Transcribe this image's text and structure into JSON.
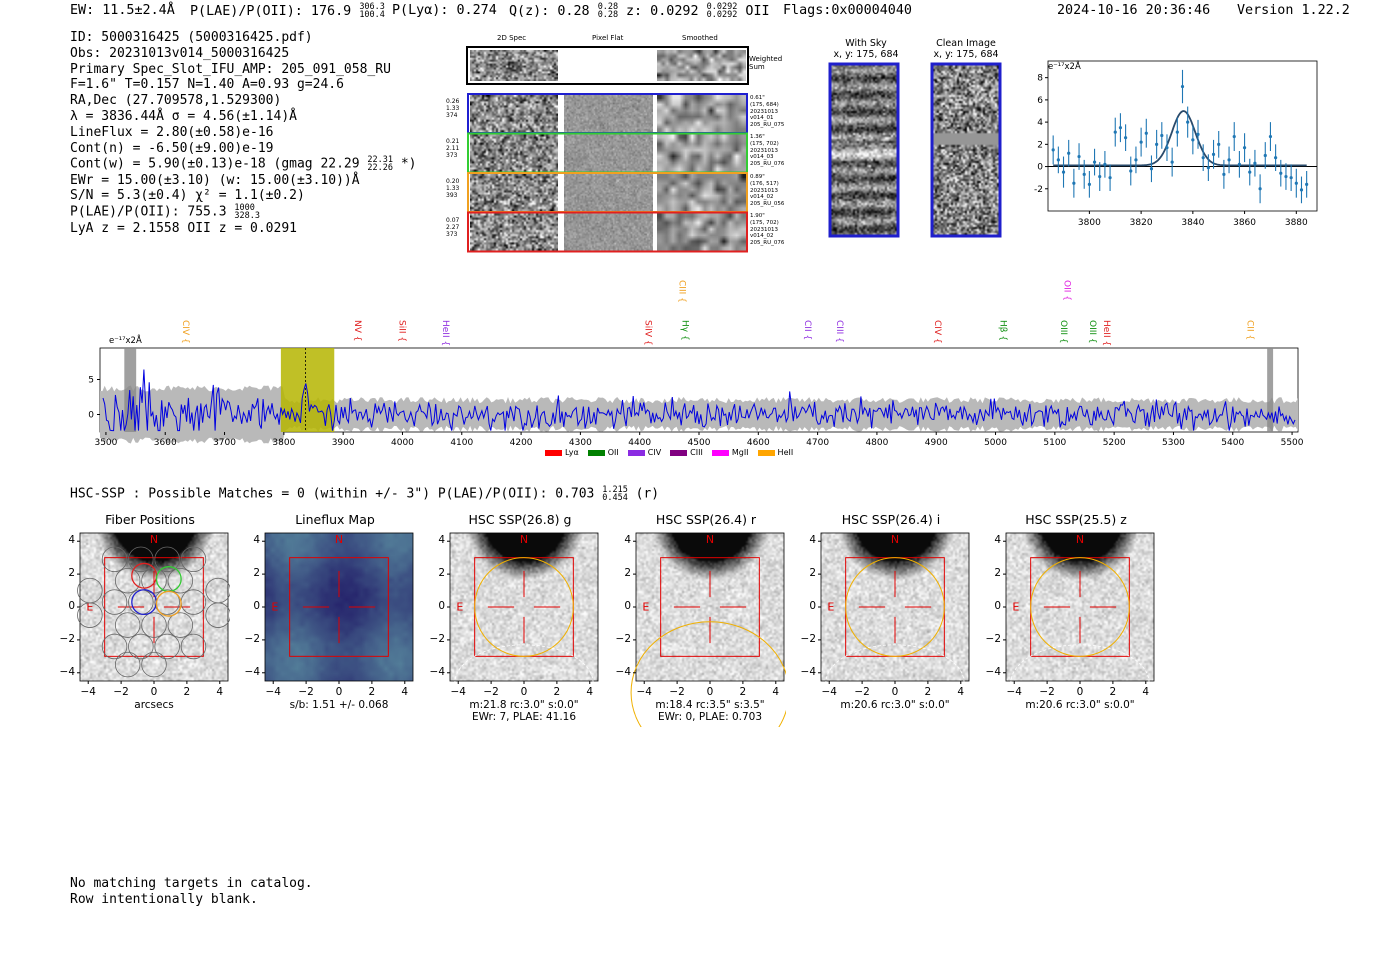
{
  "header": {
    "ew": "EW: 11.5±2.4Å",
    "plae_label": "P(LAE)/P(OII): 176.9",
    "plae_hi": "306.3",
    "plae_lo": "100.4",
    "plya": "P(Lyα): 0.274",
    "qz_label": "Q(z): 0.28",
    "qz_hi": "0.28",
    "qz_lo": "0.28",
    "z_label": "z: 0.0292",
    "z_hi": "0.0292",
    "z_lo": "0.0292",
    "z_line": "OII",
    "flags": "Flags:0x00004040",
    "timestamp": "2024-10-16 20:36:46",
    "version": "Version 1.22.2"
  },
  "info": {
    "id": "ID: 5000316425 (5000316425.pdf)",
    "obs": "Obs: 20231013v014_5000316425",
    "primary": "Primary Spec_Slot_IFU_AMP: 205_091_058_RU",
    "fiber": "F=1.6\"  T=0.157  N=1.40  A=0.93  g=24.6",
    "radec": "RA,Dec (27.709578,1.529300)",
    "lambda": "λ = 3836.44Å   σ = 4.56(±1.14)Å",
    "lineflux": "LineFlux = 2.80(±0.58)e-16",
    "contn": "Cont(n) = -6.50(±9.00)e-19",
    "contw_a": "Cont(w) = 5.90(±0.13)e-18 (gmag 22.29",
    "contw_hi": "22.31",
    "contw_lo": "22.26",
    "contw_b": "*)",
    "ewr": "EWr = 15.00(±3.10) (w: 15.00(±3.10))Å",
    "sn": "S/N = 5.3(±0.4)  χ² = 1.1(±0.2)",
    "plae_a": "P(LAE)/P(OII): 755.3",
    "plae_hi": "1000",
    "plae_lo": "328.3",
    "lyaz": "LyA z = 2.1558  OII z = 0.0291"
  },
  "cutouts": {
    "col_titles": [
      "2D Spec",
      "Pixel Flat",
      "Smoothed"
    ],
    "weighted_sum": "Weighted Sum",
    "rows": [
      {
        "left": [
          "0.26",
          "1.33",
          "374"
        ],
        "right": [
          "0.61\"",
          "(175, 684)",
          "20231013",
          "v014_01",
          "205_RU_075"
        ],
        "color": "#1f1fd0"
      },
      {
        "left": [
          "0.21",
          "2.11",
          "373"
        ],
        "right": [
          "1.36\"",
          "(175, 702)",
          "20231013",
          "v014_03",
          "205_RU_076"
        ],
        "color": "#33cc33"
      },
      {
        "left": [
          "0.20",
          "1.33",
          "393"
        ],
        "right": [
          "0.89\"",
          "(176, 517)",
          "20231013",
          "v014_02",
          "205_RU_056"
        ],
        "color": "#f0a020"
      },
      {
        "left": [
          "0.07",
          "2.27",
          "373"
        ],
        "right": [
          "1.90\"",
          "(175, 702)",
          "20231013",
          "v014_02",
          "205_RU_076"
        ],
        "color": "#e02020"
      }
    ]
  },
  "sky": {
    "with_sky_title": "With Sky",
    "with_sky_xy": "x, y: 175, 684",
    "clean_title": "Clean Image",
    "clean_xy": "x, y: 175, 684"
  },
  "zoom_unit": "e⁻¹⁷x2Å",
  "full_unit": "e⁻¹⁷x2Å",
  "chart_data": [
    {
      "type": "scatter",
      "name": "zoom_spectrum",
      "xlim": [
        3784,
        3888
      ],
      "ylim": [
        -4,
        9.5
      ],
      "xticks": [
        3800,
        3820,
        3840,
        3860,
        3880
      ],
      "yticks": [
        -2,
        0,
        2,
        4,
        6,
        8
      ],
      "x": [
        3786,
        3788,
        3790,
        3792,
        3794,
        3796,
        3798,
        3800,
        3802,
        3804,
        3806,
        3808,
        3810,
        3812,
        3814,
        3816,
        3818,
        3820,
        3822,
        3824,
        3826,
        3828,
        3830,
        3832,
        3834,
        3836,
        3838,
        3840,
        3842,
        3844,
        3846,
        3848,
        3850,
        3852,
        3854,
        3856,
        3858,
        3860,
        3862,
        3864,
        3866,
        3868,
        3870,
        3872,
        3874,
        3876,
        3878,
        3880,
        3882,
        3884
      ],
      "y": [
        1.5,
        0.6,
        -0.5,
        1.2,
        -1.5,
        0.9,
        -0.7,
        -1.6,
        0.4,
        -0.9,
        0.2,
        -1.0,
        3.1,
        3.5,
        2.6,
        -0.4,
        0.6,
        2.2,
        3.0,
        -0.2,
        2.0,
        2.8,
        1.7,
        0.4,
        3.1,
        7.2,
        4.0,
        2.4,
        2.9,
        0.8,
        -0.1,
        1.1,
        2.0,
        -0.7,
        0.6,
        2.7,
        0.2,
        1.7,
        -0.5,
        0.3,
        -2.0,
        1.0,
        2.7,
        0.8,
        -0.6,
        -0.9,
        -1.0,
        -1.5,
        -2.1,
        -1.6
      ],
      "err": [
        1.3,
        1.2,
        1.4,
        1.2,
        1.3,
        1.2,
        1.3,
        1.2,
        1.2,
        1.3,
        1.2,
        1.2,
        1.3,
        1.3,
        1.2,
        1.3,
        1.2,
        1.3,
        1.3,
        1.2,
        1.3,
        1.2,
        1.2,
        1.3,
        1.3,
        1.5,
        1.4,
        1.3,
        1.3,
        1.2,
        1.2,
        1.3,
        1.2,
        1.3,
        1.2,
        1.3,
        1.2,
        1.3,
        1.2,
        1.2,
        1.3,
        1.2,
        1.3,
        1.2,
        1.2,
        1.2,
        1.2,
        1.3,
        1.2,
        1.2
      ],
      "fit": {
        "amp": 4.9,
        "center": 3836.4,
        "sigma": 4.56,
        "baseline": 0.1
      }
    },
    {
      "type": "line",
      "name": "full_spectrum",
      "xlim": [
        3490,
        5510
      ],
      "ylim": [
        -2.5,
        9.5
      ],
      "xticks": [
        3500,
        3600,
        3700,
        3800,
        3900,
        4000,
        4100,
        4200,
        4300,
        4400,
        4500,
        4600,
        4700,
        4800,
        4900,
        5000,
        5100,
        5200,
        5300,
        5400,
        5500
      ],
      "yticks": [
        0,
        5
      ],
      "highlight_range": [
        3795,
        3885
      ],
      "line_marker": 3836.4,
      "lines": [
        {
          "label": "CIV",
          "x": 3625,
          "color": "#f0a020",
          "high": false
        },
        {
          "label": "NV",
          "x": 3915,
          "color": "#e02020",
          "high": false
        },
        {
          "label": "SiII",
          "x": 3990,
          "color": "#e02020",
          "high": false
        },
        {
          "label": "HeII",
          "x": 4063,
          "color": "#9030e0",
          "high": false
        },
        {
          "label": "SiIV",
          "x": 4405,
          "color": "#e02020",
          "high": false
        },
        {
          "label": "CIII",
          "x": 4462,
          "color": "#f0a020",
          "high": true
        },
        {
          "label": "Hγ",
          "x": 4467,
          "color": "#109010",
          "high": false
        },
        {
          "label": "CII",
          "x": 4674,
          "color": "#9030e0",
          "high": false
        },
        {
          "label": "CIII",
          "x": 4728,
          "color": "#9030e0",
          "high": false
        },
        {
          "label": "CIV",
          "x": 4893,
          "color": "#e02020",
          "high": false
        },
        {
          "label": "Hβ",
          "x": 5003,
          "color": "#109010",
          "high": false
        },
        {
          "label": "OIII",
          "x": 5105,
          "color": "#109010",
          "high": false
        },
        {
          "label": "OII",
          "x": 5111,
          "color": "#e020e0",
          "high": true
        },
        {
          "label": "OIII",
          "x": 5154,
          "color": "#109010",
          "high": false
        },
        {
          "label": "HeII",
          "x": 5178,
          "color": "#e02020",
          "high": false
        },
        {
          "label": "CII",
          "x": 5420,
          "color": "#f0a020",
          "high": false
        }
      ]
    }
  ],
  "legend": [
    {
      "label": "Lyα",
      "color": "#ff0000"
    },
    {
      "label": "OII",
      "color": "#008000"
    },
    {
      "label": "CIV",
      "color": "#8a2be2"
    },
    {
      "label": "CIII",
      "color": "#800080"
    },
    {
      "label": "MgII",
      "color": "#ff00ff"
    },
    {
      "label": "HeII",
      "color": "#ffa500"
    }
  ],
  "hsc": {
    "line_a": "HSC-SSP : Possible Matches = 0 (within +/- 3\")  P(LAE)/P(OII): 0.703",
    "hi": "1.215",
    "lo": "0.454",
    "line_b": "(r)"
  },
  "panels": [
    {
      "title": "Fiber Positions",
      "xlabel": "arcsecs",
      "caption1": "",
      "caption2": "",
      "kind": "fiber"
    },
    {
      "title": "Lineflux Map",
      "xlabel": "",
      "caption1": "s/b: 1.51 +/- 0.068",
      "caption2": "",
      "kind": "lineflux"
    },
    {
      "title": "HSC SSP(26.8) g",
      "xlabel": "",
      "caption1": "m:21.8 rc:3.0\"  s:0.0\"",
      "caption2": "EWr: 7, PLAE: 41.16",
      "kind": "g"
    },
    {
      "title": "HSC SSP(26.4) r",
      "xlabel": "",
      "caption1": "m:18.4  rc:3.5\"  s:3.5\"",
      "caption2": "EWr: 0, PLAE: 0.703",
      "kind": "r"
    },
    {
      "title": "HSC SSP(26.4) i",
      "xlabel": "",
      "caption1": "m:20.6 rc:3.0\"  s:0.0\"",
      "caption2": "",
      "kind": "i"
    },
    {
      "title": "HSC SSP(25.5) z",
      "xlabel": "",
      "caption1": "m:20.6 rc:3.0\"  s:0.0\"",
      "caption2": "",
      "kind": "z"
    }
  ],
  "panel_ticks": [
    "4",
    "2",
    "0",
    "−2",
    "−4"
  ],
  "panel_xticks": [
    "−4",
    "−2",
    "0",
    "2",
    "4"
  ],
  "compass": {
    "n": "N",
    "e": "E"
  },
  "footer": {
    "line1": "No matching targets in catalog.",
    "line2": "Row intentionally blank."
  }
}
